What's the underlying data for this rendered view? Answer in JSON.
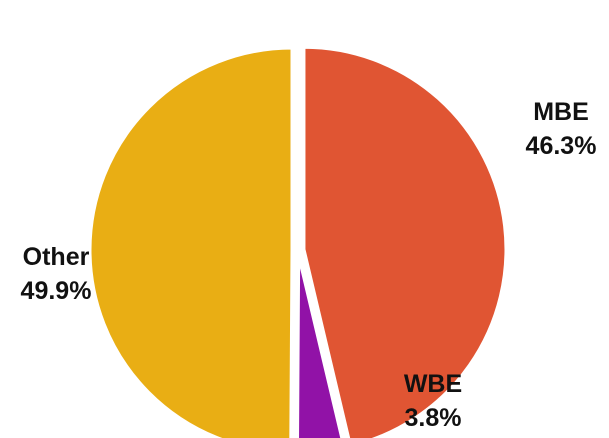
{
  "chart_data": {
    "type": "pie",
    "title": "",
    "slices": [
      {
        "name": "MBE",
        "value": 46.3,
        "percent_label": "46.3%",
        "color": "#E05533"
      },
      {
        "name": "WBE",
        "value": 3.8,
        "percent_label": "3.8%",
        "color": "#9112A7"
      },
      {
        "name": "Other",
        "value": 49.9,
        "percent_label": "49.9%",
        "color": "#E9AE14"
      }
    ],
    "start_angle_deg": 0,
    "direction": "clockwise",
    "exploded": true,
    "legend": "none"
  }
}
